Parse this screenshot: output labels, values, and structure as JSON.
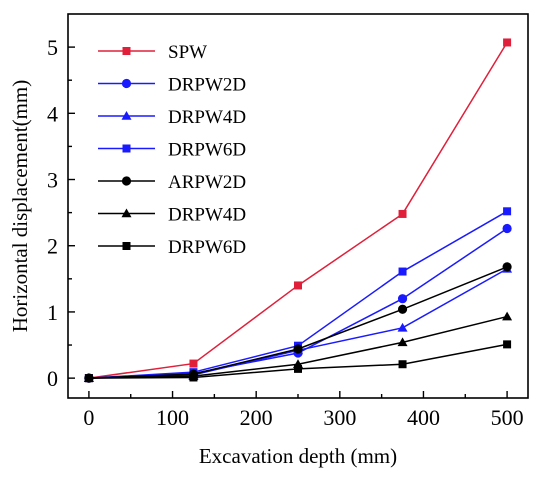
{
  "chart_data": {
    "type": "line",
    "title": "",
    "xlabel": "Excavation depth (mm)",
    "ylabel": "Horizontal displacement(mm)",
    "xlim": [
      -25,
      525
    ],
    "ylim": [
      -0.3,
      5.5
    ],
    "xticks": [
      0,
      100,
      200,
      300,
      400,
      500
    ],
    "yticks": [
      0,
      1,
      2,
      3,
      4,
      5
    ],
    "x": [
      0,
      125,
      250,
      375,
      500
    ],
    "legend_position": "top-left",
    "grid": false,
    "series": [
      {
        "name": "SPW",
        "color": "#e0203a",
        "marker": "square",
        "values": [
          0,
          0.22,
          1.4,
          2.48,
          5.07
        ]
      },
      {
        "name": "DRPW2D",
        "color": "#1a1aff",
        "marker": "circle",
        "values": [
          0,
          0.07,
          0.38,
          1.2,
          2.26
        ]
      },
      {
        "name": "DRPW4D",
        "color": "#1a1aff",
        "marker": "triangle",
        "values": [
          0,
          0.05,
          0.42,
          0.76,
          1.65
        ]
      },
      {
        "name": "DRPW6D",
        "color": "#1a1aff",
        "marker": "square",
        "values": [
          0,
          0.09,
          0.49,
          1.61,
          2.52
        ]
      },
      {
        "name": "ARPW2D",
        "color": "#000000",
        "marker": "circle",
        "values": [
          0,
          0.06,
          0.44,
          1.04,
          1.68
        ]
      },
      {
        "name": "DRPW4D",
        "color": "#000000",
        "marker": "triangle",
        "values": [
          0,
          0.03,
          0.21,
          0.54,
          0.93
        ]
      },
      {
        "name": "DRPW6D",
        "color": "#000000",
        "marker": "square",
        "values": [
          0,
          0.01,
          0.14,
          0.21,
          0.51
        ]
      }
    ]
  }
}
